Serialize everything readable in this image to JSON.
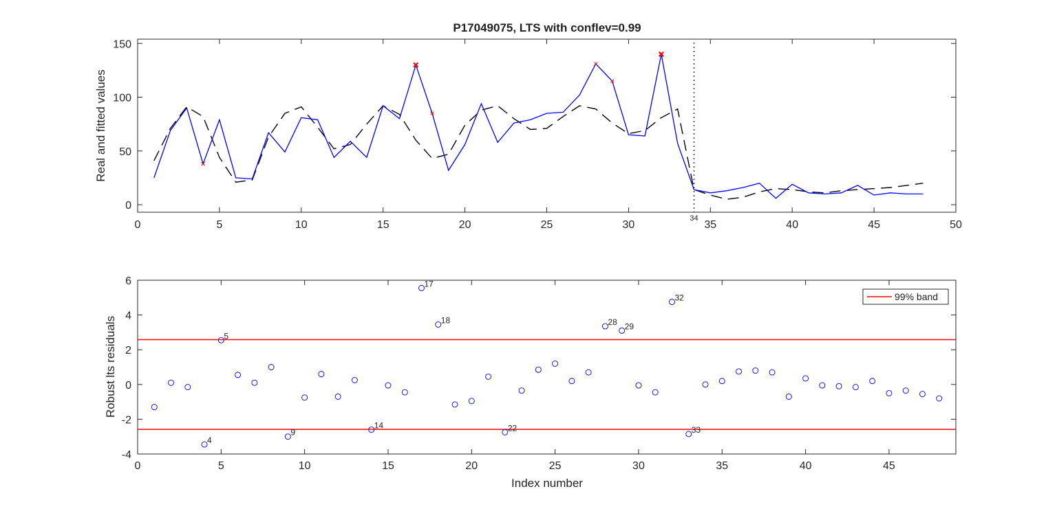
{
  "chart_data": [
    {
      "type": "line",
      "title": "P17049075, LTS with conflev=0.99",
      "xlabel": "",
      "ylabel": "Real and fitted values",
      "xlim": [
        0,
        50
      ],
      "ylim": [
        -7,
        154
      ],
      "xticks": [
        "0",
        "5",
        "10",
        "15",
        "20",
        "25",
        "30",
        "35",
        "40",
        "45",
        "50"
      ],
      "yticks": [
        "0",
        "50",
        "100",
        "150"
      ],
      "grid": false,
      "series": [
        {
          "role": "real",
          "color": "#0000ff",
          "style": "solid",
          "x": [
            1,
            2,
            3,
            4,
            5,
            6,
            7,
            8,
            9,
            10,
            11,
            12,
            13,
            14,
            15,
            16,
            17,
            18,
            19,
            20,
            21,
            22,
            23,
            24,
            25,
            26,
            27,
            28,
            29,
            30,
            31,
            32,
            33,
            34,
            35,
            36,
            37,
            38,
            39,
            40,
            41,
            42,
            43,
            44,
            45,
            46,
            47,
            48
          ],
          "y": [
            25,
            69,
            90,
            38,
            79,
            25,
            24,
            67,
            49,
            81,
            79,
            44,
            59,
            44,
            92,
            80,
            130,
            85,
            32,
            56,
            94,
            58,
            76,
            79,
            85,
            86,
            102,
            131,
            115,
            65,
            64,
            140,
            57,
            14,
            11,
            13,
            16,
            20,
            6,
            19,
            11,
            10,
            11,
            18,
            9,
            11,
            10,
            10
          ]
        },
        {
          "role": "fitted",
          "color": "#000000",
          "style": "dashed",
          "x": [
            1,
            2,
            3,
            4,
            5,
            6,
            7,
            8,
            9,
            10,
            11,
            12,
            13,
            14,
            15,
            16,
            17,
            18,
            19,
            20,
            21,
            22,
            23,
            24,
            25,
            26,
            27,
            28,
            29,
            30,
            31,
            32,
            33,
            34,
            35,
            36,
            37,
            38,
            39,
            40,
            41,
            42,
            43,
            44,
            45,
            46,
            47,
            48
          ],
          "y": [
            41,
            71,
            91,
            82,
            44,
            21,
            23,
            63,
            85,
            91,
            72,
            52,
            56,
            75,
            92,
            84,
            60,
            43,
            47,
            74,
            88,
            92,
            80,
            70,
            71,
            82,
            92,
            89,
            76,
            66,
            69,
            81,
            89,
            14,
            9,
            5,
            7,
            12,
            15,
            14,
            12,
            11,
            13,
            14,
            15,
            16,
            18,
            20
          ]
        }
      ],
      "outlier_markers": {
        "color": "#ff0000",
        "x": [
          4,
          17,
          18,
          28,
          29,
          32
        ],
        "y": [
          38,
          130,
          85,
          131,
          115,
          140
        ],
        "bold": [
          false,
          true,
          false,
          false,
          false,
          true
        ]
      },
      "vline": {
        "x": 34,
        "label": "34",
        "style": "dotted"
      }
    },
    {
      "type": "scatter",
      "title": "",
      "xlabel": "Index number",
      "ylabel": "Robust lts residuals",
      "xlim": [
        0,
        49
      ],
      "ylim": [
        -4,
        6
      ],
      "xticks": [
        "0",
        "5",
        "10",
        "15",
        "20",
        "25",
        "30",
        "35",
        "40",
        "45"
      ],
      "yticks": [
        "-4",
        "-2",
        "0",
        "2",
        "4",
        "6"
      ],
      "grid": false,
      "points": {
        "color": "#0000ff",
        "marker": "open-circle",
        "x": [
          1,
          2,
          3,
          4,
          5,
          6,
          7,
          8,
          9,
          10,
          11,
          12,
          13,
          14,
          15,
          16,
          17,
          18,
          19,
          20,
          21,
          22,
          23,
          24,
          25,
          26,
          27,
          28,
          29,
          30,
          31,
          32,
          33,
          34,
          35,
          36,
          37,
          38,
          39,
          40,
          41,
          42,
          43,
          44,
          45,
          46,
          47,
          48
        ],
        "y": [
          -1.3,
          0.1,
          -0.15,
          -3.45,
          2.55,
          0.55,
          0.1,
          1.0,
          -3.0,
          -0.75,
          0.6,
          -0.7,
          0.25,
          -2.6,
          -0.05,
          -0.45,
          5.55,
          3.45,
          -1.15,
          -0.95,
          0.45,
          -2.75,
          -0.35,
          0.85,
          1.2,
          0.2,
          0.7,
          3.35,
          3.1,
          -0.05,
          -0.45,
          4.75,
          -2.85,
          0.0,
          0.2,
          0.75,
          0.8,
          0.7,
          -0.7,
          0.35,
          -0.05,
          -0.1,
          -0.15,
          0.2,
          -0.5,
          -0.35,
          -0.55,
          -0.8
        ]
      },
      "point_labels": [
        {
          "x": 4,
          "y": -3.45,
          "text": "4"
        },
        {
          "x": 5,
          "y": 2.55,
          "text": "5"
        },
        {
          "x": 9,
          "y": -3.0,
          "text": "9"
        },
        {
          "x": 14,
          "y": -2.6,
          "text": "14"
        },
        {
          "x": 17,
          "y": 5.55,
          "text": "17"
        },
        {
          "x": 18,
          "y": 3.45,
          "text": "18"
        },
        {
          "x": 22,
          "y": -2.75,
          "text": "22"
        },
        {
          "x": 28,
          "y": 3.35,
          "text": "28"
        },
        {
          "x": 29,
          "y": 3.1,
          "text": "29"
        },
        {
          "x": 32,
          "y": 4.75,
          "text": "32"
        },
        {
          "x": 33,
          "y": -2.85,
          "text": "33"
        }
      ],
      "bands": {
        "name": "99% band",
        "color": "#ff0000",
        "values": [
          2.58,
          -2.58
        ]
      },
      "legend": {
        "position": "top-right",
        "entries": [
          "99% band"
        ]
      }
    }
  ]
}
